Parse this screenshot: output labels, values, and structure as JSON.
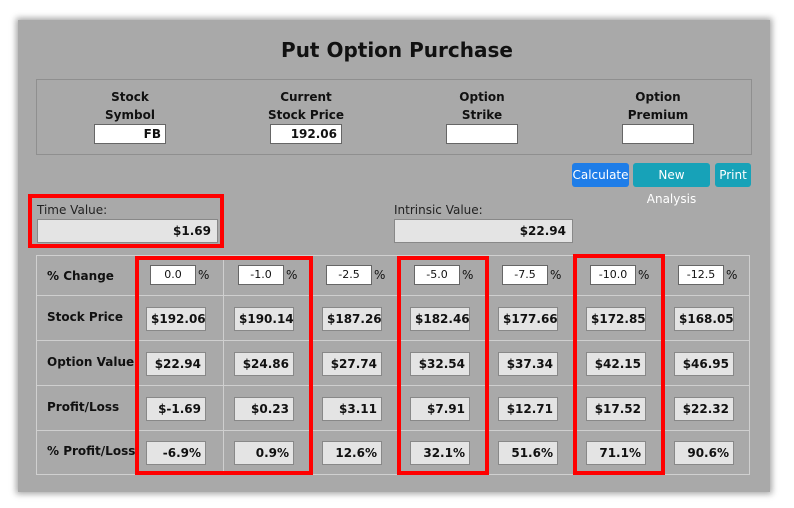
{
  "title": "Put Option Purchase",
  "inputs": [
    {
      "label_line1": "Stock",
      "label_line2": "Symbol",
      "value": "FB"
    },
    {
      "label_line1": "Current",
      "label_line2": "Stock Price",
      "value": "192.06"
    },
    {
      "label_line1": "Option",
      "label_line2": "Strike",
      "value": ""
    },
    {
      "label_line1": "Option",
      "label_line2": "Premium",
      "value": ""
    }
  ],
  "buttons": {
    "calculate": "Calculate",
    "new_analysis": "New Analysis",
    "print": "Print"
  },
  "time_value": {
    "label": "Time Value:",
    "value": "$1.69"
  },
  "intrinsic_value": {
    "label": "Intrinsic Value:",
    "value": "$22.94"
  },
  "table": {
    "row_labels": [
      "% Change",
      "Stock Price",
      "Option Value",
      "Profit/Loss",
      "% Profit/Loss"
    ],
    "pct_sign": "%",
    "columns": [
      {
        "change": "0.0",
        "stock_price": "$192.06",
        "option_value": "$22.94",
        "profit_loss": "$-1.69",
        "pct_profit_loss": "-6.9%"
      },
      {
        "change": "-1.0",
        "stock_price": "$190.14",
        "option_value": "$24.86",
        "profit_loss": "$0.23",
        "pct_profit_loss": "0.9%"
      },
      {
        "change": "-2.5",
        "stock_price": "$187.26",
        "option_value": "$27.74",
        "profit_loss": "$3.11",
        "pct_profit_loss": "12.6%"
      },
      {
        "change": "-5.0",
        "stock_price": "$182.46",
        "option_value": "$32.54",
        "profit_loss": "$7.91",
        "pct_profit_loss": "32.1%"
      },
      {
        "change": "-7.5",
        "stock_price": "$177.66",
        "option_value": "$37.34",
        "profit_loss": "$12.71",
        "pct_profit_loss": "51.6%"
      },
      {
        "change": "-10.0",
        "stock_price": "$172.85",
        "option_value": "$42.15",
        "profit_loss": "$17.52",
        "pct_profit_loss": "71.1%"
      },
      {
        "change": "-12.5",
        "stock_price": "$168.05",
        "option_value": "$46.95",
        "profit_loss": "$22.32",
        "pct_profit_loss": "90.6%"
      }
    ]
  },
  "colors": {
    "highlight": "#ff0000",
    "panel": "#a9a9a9",
    "primary_button": "#1e7de8",
    "info_button": "#17a2b8"
  }
}
